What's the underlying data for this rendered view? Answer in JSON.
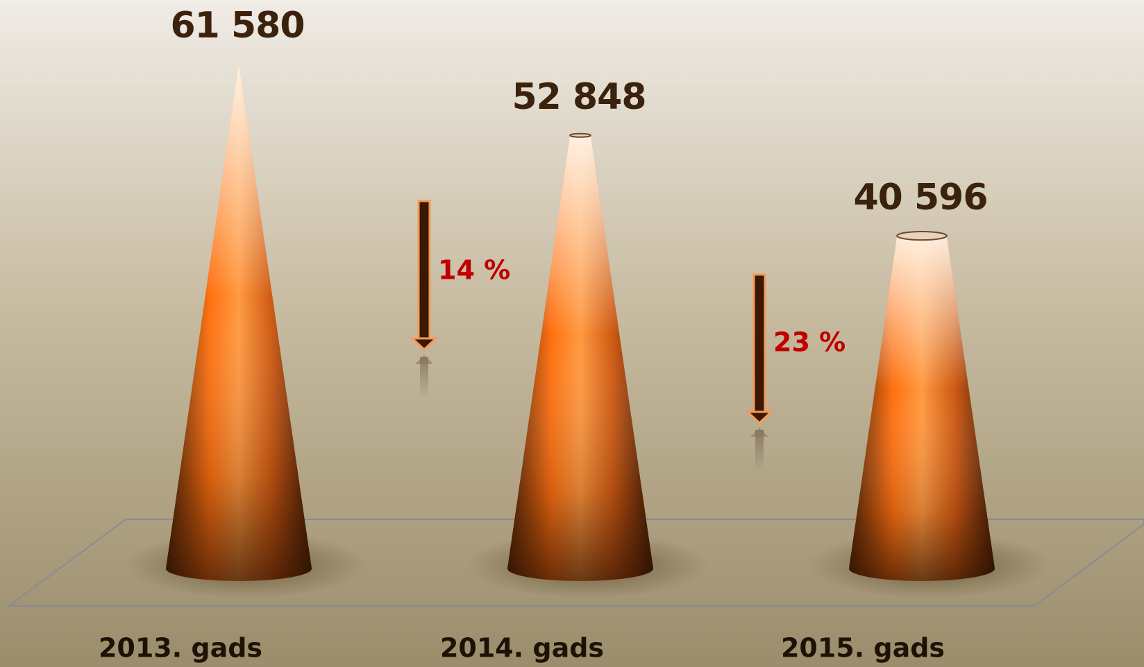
{
  "chart_data": {
    "type": "cone",
    "categories": [
      "2013. gads",
      "2014. gads",
      "2015. gads"
    ],
    "values": [
      61580,
      52848,
      40596
    ],
    "value_labels": [
      "61 580",
      "52 848",
      "40 596"
    ],
    "annotations": [
      {
        "text": "14 %"
      },
      {
        "text": "23 %"
      }
    ]
  }
}
